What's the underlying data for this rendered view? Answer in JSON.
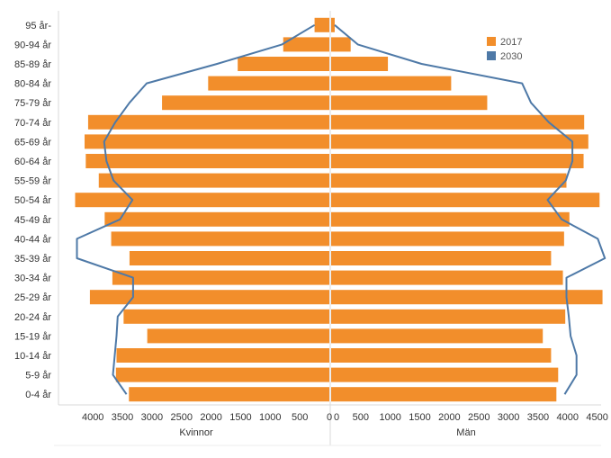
{
  "chart_data": {
    "type": "bar",
    "orientation": "horizontal-population-pyramid",
    "categories": [
      "95 år-",
      "90-94 år",
      "85-89 år",
      "80-84 år",
      "75-79 år",
      "70-74 år",
      "65-69 år",
      "60-64 år",
      "55-59 år",
      "50-54 år",
      "45-49 år",
      "40-44 år",
      "35-39 år",
      "30-34 år",
      "25-29 år",
      "20-24 år",
      "15-19 år",
      "10-14 år",
      "5-9 år",
      "0-4 år"
    ],
    "panels": [
      {
        "name": "Kvinnor",
        "xlabel": "Kvinnor",
        "side": "left",
        "ticks": [
          "4000",
          "3500",
          "3000",
          "2500",
          "2000",
          "1500",
          "1000",
          "500",
          "0"
        ]
      },
      {
        "name": "Män",
        "xlabel": "Män",
        "side": "right",
        "ticks": [
          "0",
          "500",
          "1000",
          "1500",
          "2000",
          "2500",
          "3000",
          "3500",
          "4000",
          "4500"
        ]
      }
    ],
    "xlim": [
      0,
      4650
    ],
    "series": [
      {
        "name": "2017",
        "type": "bar",
        "color": "#f28e2b",
        "women": [
          250,
          780,
          1550,
          2050,
          2830,
          4080,
          4140,
          4120,
          3900,
          4300,
          3800,
          3690,
          3380,
          3670,
          4050,
          3480,
          3080,
          3600,
          3610,
          3390
        ],
        "men": [
          60,
          330,
          960,
          2030,
          2640,
          4280,
          4350,
          4270,
          3980,
          4540,
          4030,
          3940,
          3720,
          3920,
          4590,
          3960,
          3580,
          3720,
          3840,
          3810
        ]
      },
      {
        "name": "2030",
        "type": "line",
        "color": "#4e79a7",
        "women": [
          250,
          800,
          1900,
          3090,
          3380,
          3620,
          3810,
          3770,
          3650,
          3330,
          3540,
          4270,
          4270,
          3320,
          3320,
          3580,
          3600,
          3630,
          3660,
          3430
        ],
        "men": [
          60,
          450,
          1530,
          3230,
          3380,
          3680,
          4080,
          4080,
          3970,
          3660,
          3900,
          4510,
          4630,
          3980,
          3980,
          4020,
          4050,
          4150,
          4150,
          3950
        ]
      }
    ],
    "legend": {
      "placement": "top-right",
      "entries": [
        "2017",
        "2030"
      ]
    },
    "grid": false
  }
}
